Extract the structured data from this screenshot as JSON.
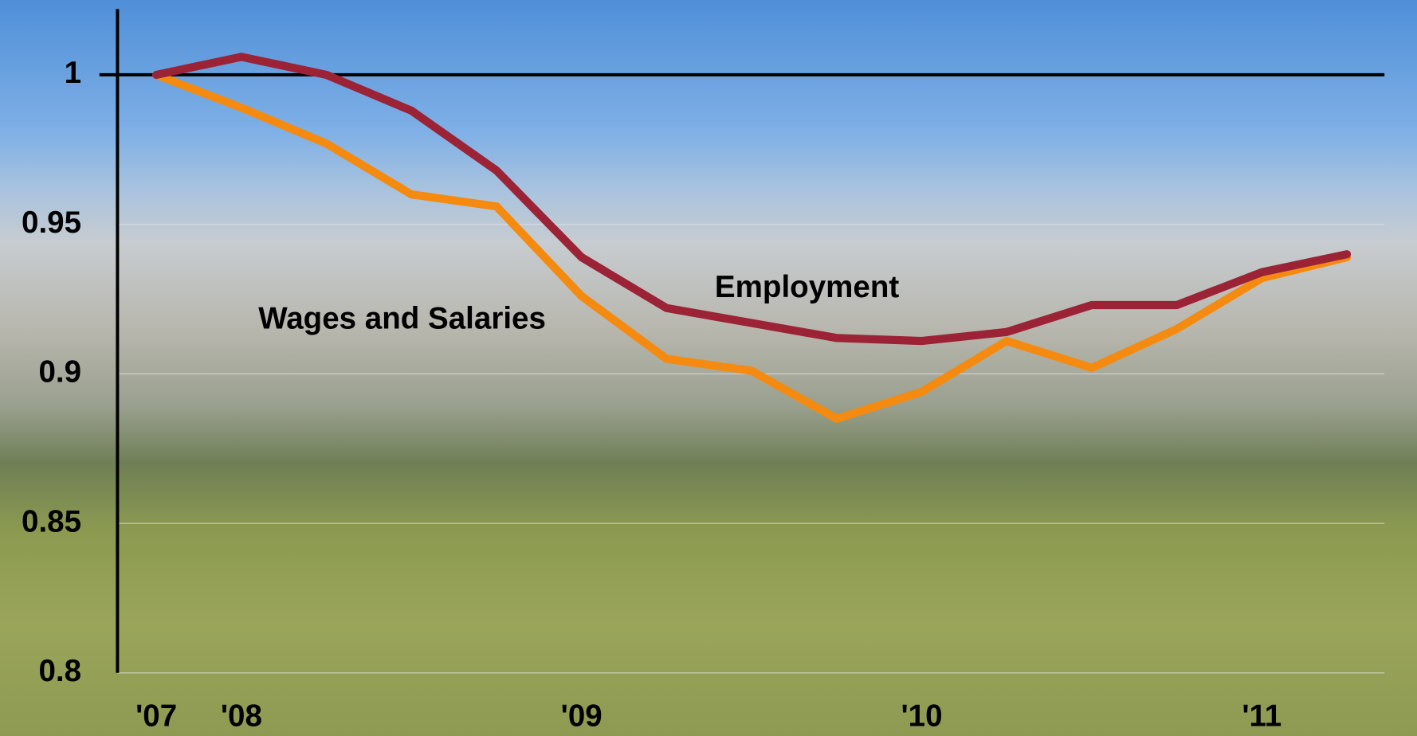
{
  "chart_data": {
    "type": "line",
    "categories": [
      "'07",
      "'08",
      null,
      null,
      null,
      "'09",
      null,
      null,
      null,
      "'10",
      null,
      null,
      null,
      "'11",
      null
    ],
    "series": [
      {
        "name": "Employment",
        "color": "#9b2335",
        "values": [
          1.0,
          1.006,
          1.0,
          0.988,
          0.968,
          0.939,
          0.922,
          0.917,
          0.912,
          0.911,
          0.914,
          0.923,
          0.923,
          0.934,
          0.94
        ]
      },
      {
        "name": "Wages and Salaries",
        "color": "#f58a10",
        "values": [
          1.0,
          0.989,
          0.977,
          0.96,
          0.956,
          0.926,
          0.905,
          0.901,
          0.885,
          0.894,
          0.911,
          0.902,
          0.915,
          0.932,
          0.939
        ]
      }
    ],
    "ylim": [
      0.8,
      1.022
    ],
    "yticks": [
      0.8,
      0.85,
      0.9,
      0.95,
      1
    ],
    "grid": true,
    "hline": 1
  }
}
